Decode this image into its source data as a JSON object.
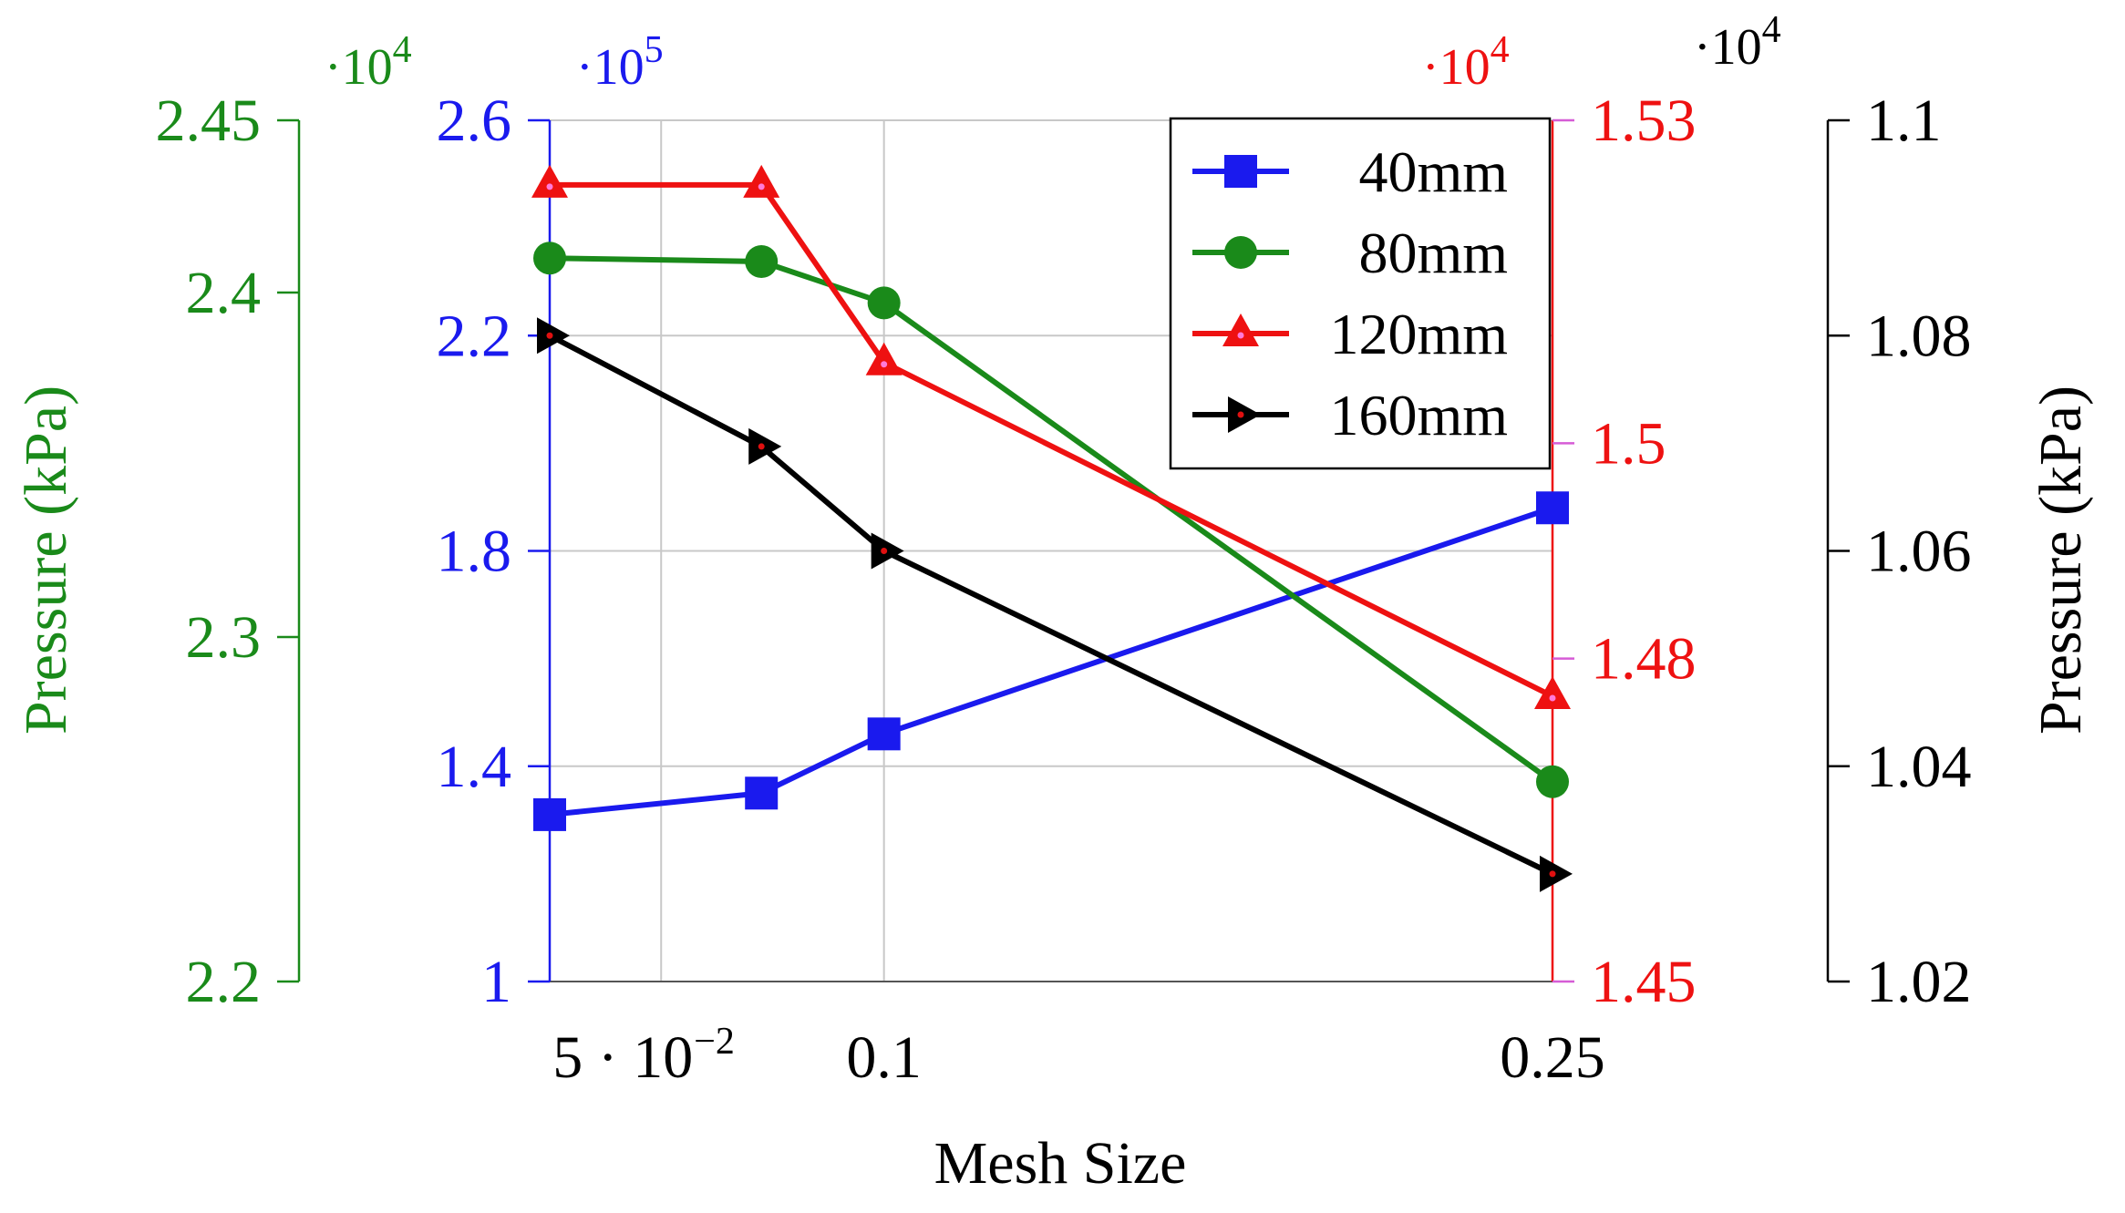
{
  "chart_data": {
    "type": "line",
    "x_axis": {
      "label": "Mesh Size",
      "range": [
        0.025,
        0.25
      ],
      "ticks": [
        0.05,
        0.1,
        0.25
      ],
      "tick_labels": [
        "5 · 10",
        "0.1",
        "0.25"
      ],
      "tick_label_exponent": "−2",
      "grid": true
    },
    "y_axes": [
      {
        "id": "left-outer",
        "series": "80mm",
        "color": "#1a8a1a",
        "label": "Pressure (kPa)",
        "multiplier": "·10",
        "multiplier_exp": "4",
        "range": [
          2.2,
          2.45
        ],
        "ticks": [
          2.2,
          2.3,
          2.4,
          2.45
        ],
        "tick_labels": [
          "2.2",
          "2.3",
          "2.4",
          "2.45"
        ]
      },
      {
        "id": "left-inner",
        "series": "40mm",
        "color": "#1a1aee",
        "label": "",
        "multiplier": "·10",
        "multiplier_exp": "5",
        "range": [
          1,
          2.6
        ],
        "ticks": [
          1,
          1.4,
          1.8,
          2.2,
          2.6
        ],
        "tick_labels": [
          "1",
          "1.4",
          "1.8",
          "2.2",
          "2.6"
        ],
        "grid": true
      },
      {
        "id": "right-inner",
        "series": "120mm",
        "color": "#ee1111",
        "label": "",
        "multiplier": "·10",
        "multiplier_exp": "4",
        "range": [
          1.45,
          1.53
        ],
        "ticks": [
          1.45,
          1.48,
          1.5,
          1.53
        ],
        "tick_labels": [
          "1.45",
          "1.48",
          "1.5",
          "1.53"
        ]
      },
      {
        "id": "right-outer",
        "series": "160mm",
        "color": "#000000",
        "label": "Pressure (kPa)",
        "multiplier": "·10",
        "multiplier_exp": "4",
        "range": [
          1.02,
          1.1
        ],
        "ticks": [
          1.02,
          1.04,
          1.06,
          1.08,
          1.1
        ],
        "tick_labels": [
          "1.02",
          "1.04",
          "1.06",
          "1.08",
          "1.1"
        ]
      }
    ],
    "series": [
      {
        "name": "40mm",
        "axis": "left-inner",
        "color": "#1a1aee",
        "marker": "square",
        "x": [
          0.025,
          0.0725,
          0.1,
          0.25
        ],
        "y": [
          1.31,
          1.35,
          1.46,
          1.88
        ]
      },
      {
        "name": "80mm",
        "axis": "left-outer",
        "color": "#1a8a1a",
        "marker": "circle",
        "x": [
          0.025,
          0.0725,
          0.1,
          0.25
        ],
        "y": [
          2.41,
          2.409,
          2.397,
          2.258
        ]
      },
      {
        "name": "120mm",
        "axis": "right-inner",
        "color": "#ee1111",
        "marker": "triangle",
        "x": [
          0.025,
          0.0725,
          0.1,
          0.25
        ],
        "y": [
          1.524,
          1.524,
          1.5075,
          1.4765
        ]
      },
      {
        "name": "160mm",
        "axis": "right-outer",
        "color": "#000000",
        "marker": "triangle-right",
        "x": [
          0.025,
          0.0725,
          0.1,
          0.25
        ],
        "y": [
          1.08,
          1.0697,
          1.06,
          1.03
        ]
      }
    ],
    "legend": {
      "position": "top-right",
      "entries": [
        "40mm",
        "80mm",
        "120mm",
        "160mm"
      ]
    }
  }
}
